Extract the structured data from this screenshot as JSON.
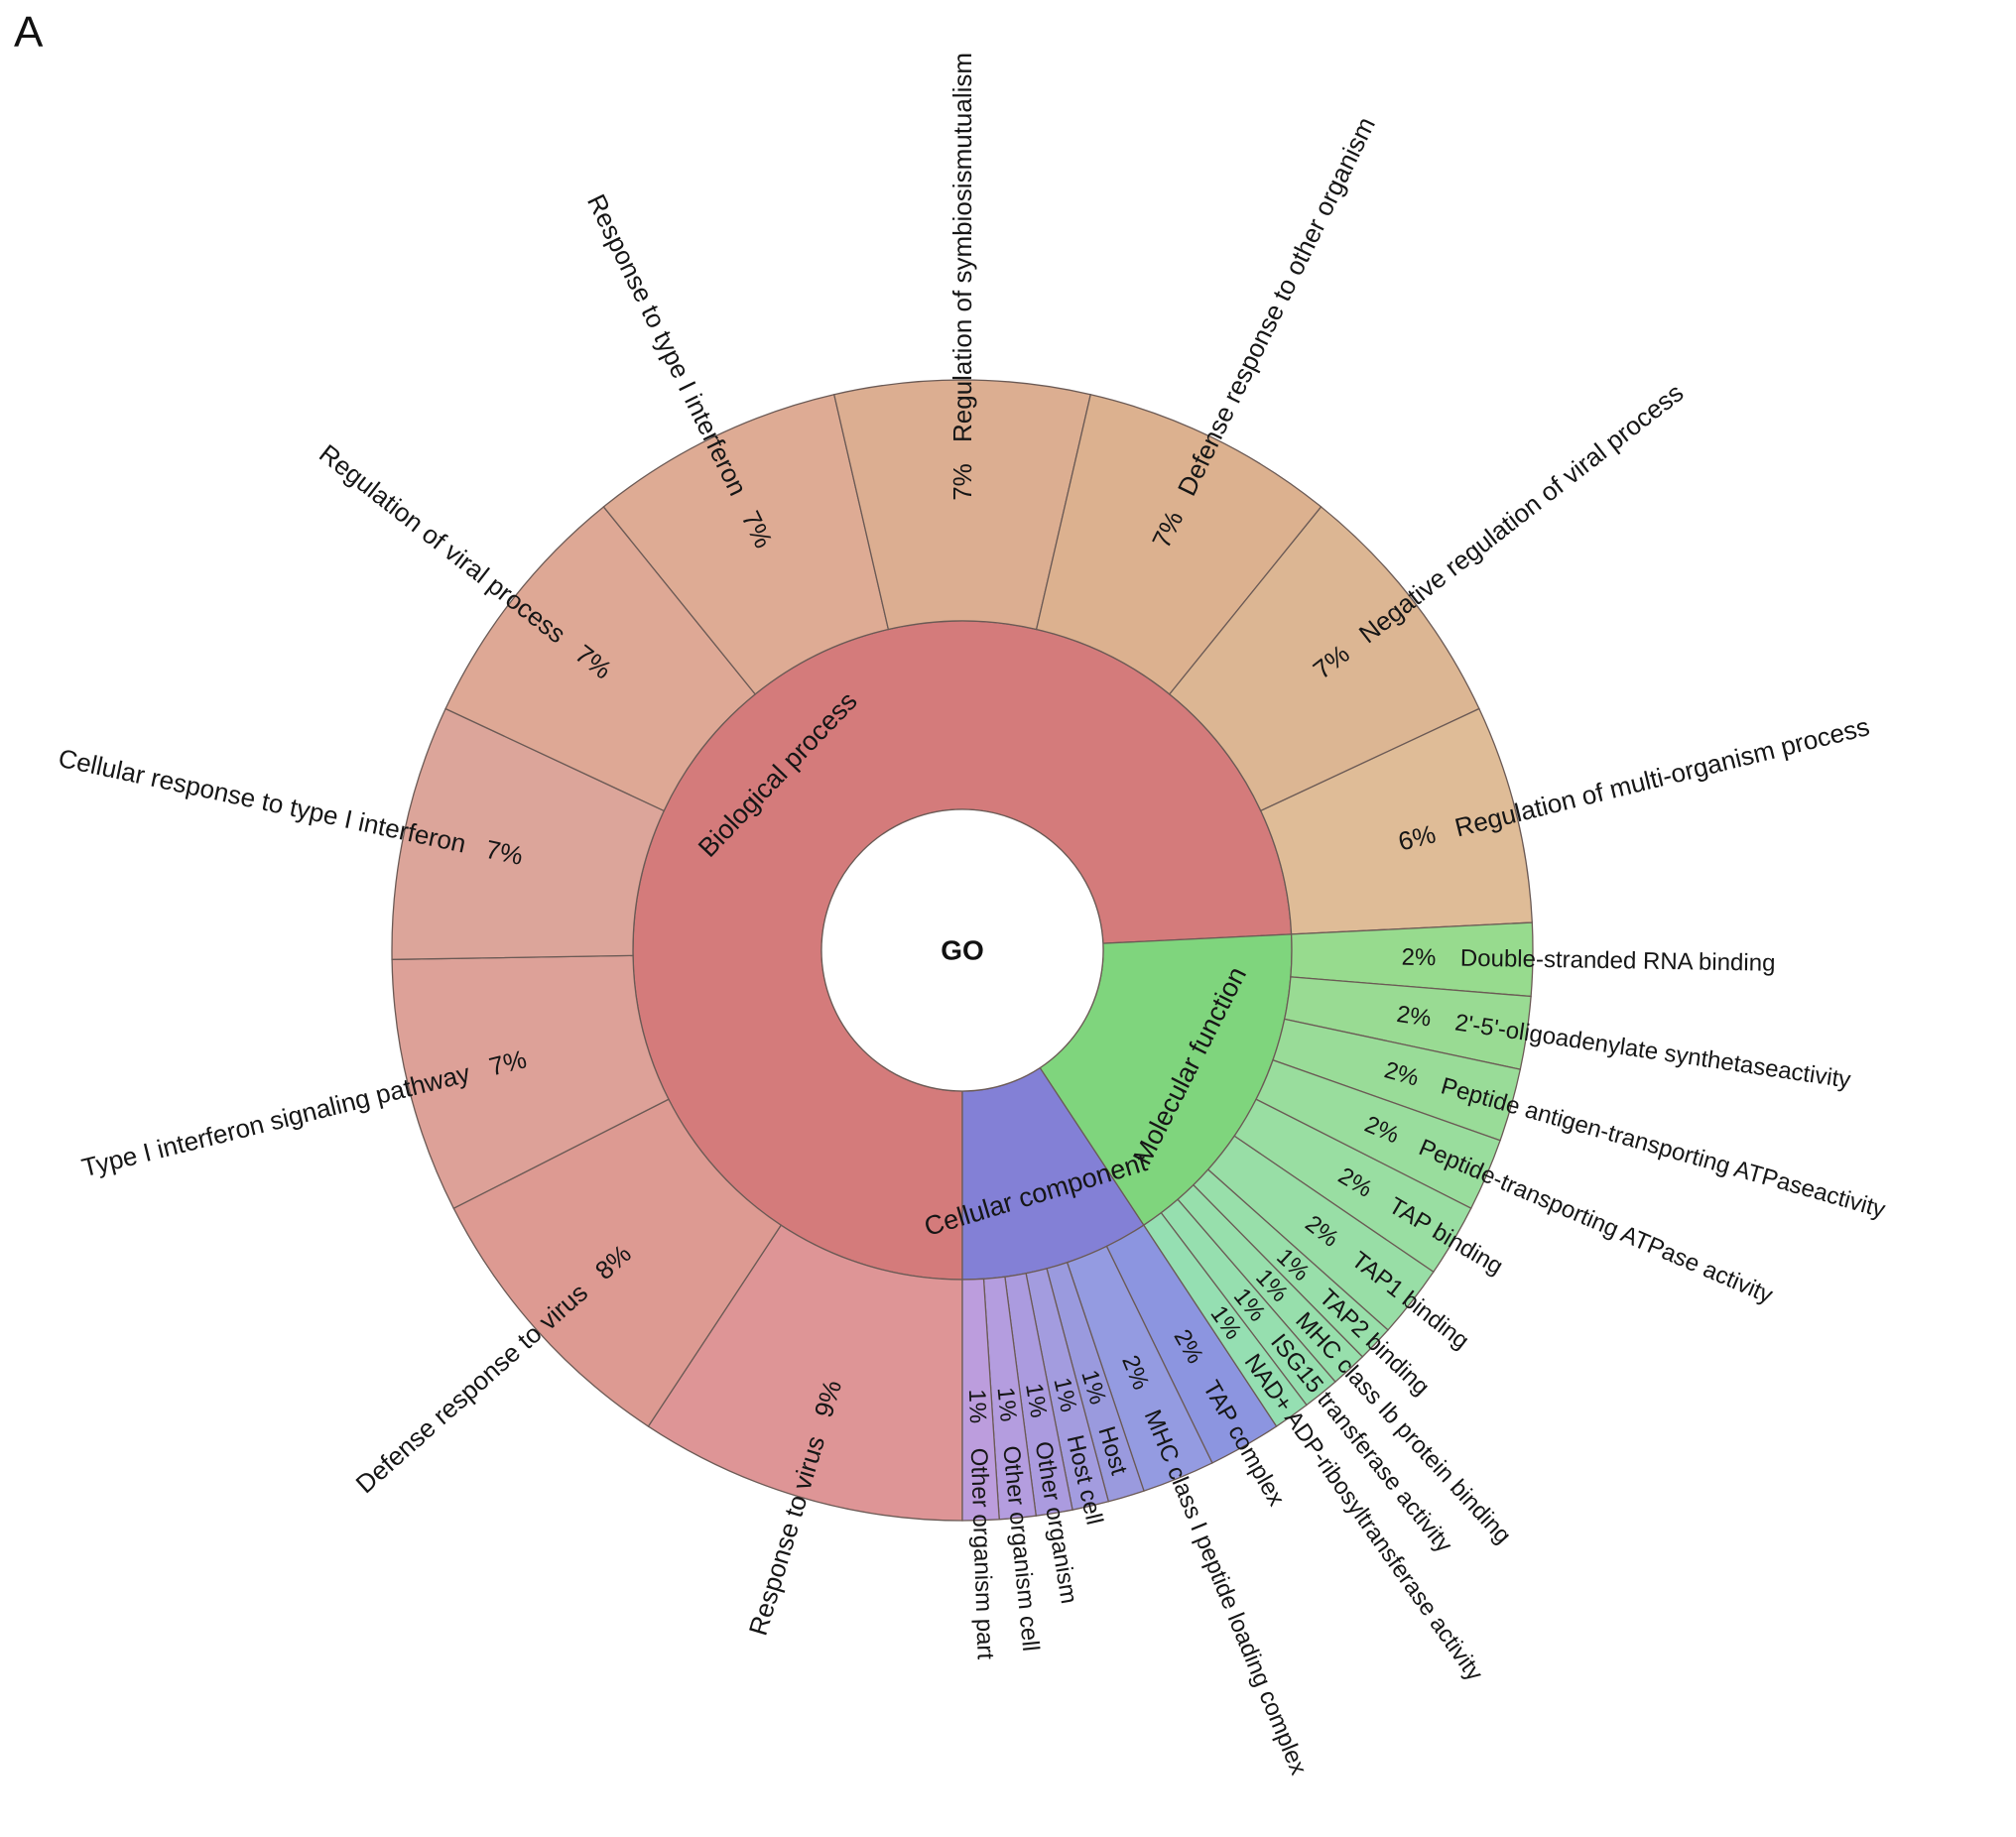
{
  "panel_label": "A",
  "chart_data": {
    "type": "sunburst",
    "root": "GO",
    "start_angle_deg": 180,
    "direction": "counter-clockwise from bottom through left",
    "categories": [
      {
        "name": "Biological process",
        "color": "#d47b7b",
        "children": [
          {
            "name": "Response to virus",
            "pct_label": "9%",
            "value": 9,
            "color": "#de9596"
          },
          {
            "name": "Defense response to virus",
            "pct_label": "8%",
            "value": 8,
            "color": "#dd9a92"
          },
          {
            "name": "Type I interferon signaling pathway",
            "pct_label": "7%",
            "value": 7,
            "color": "#dda198"
          },
          {
            "name": "Cellular response to type I interferon",
            "pct_label": "7%",
            "value": 7,
            "color": "#dca59a"
          },
          {
            "name": "Regulation of viral process",
            "pct_label": "7%",
            "value": 7,
            "color": "#dea895"
          },
          {
            "name": "Response to type I interferon",
            "pct_label": "7%",
            "value": 7,
            "color": "#deab94"
          },
          {
            "name": "Regulation of symbiosismutualism",
            "pct_label": "7%",
            "value": 7,
            "color": "#dcae91"
          },
          {
            "name": "Defense response to other organism",
            "pct_label": "7%",
            "value": 7,
            "color": "#dcb18f"
          },
          {
            "name": "Negative regulation of viral process",
            "pct_label": "7%",
            "value": 7,
            "color": "#dcb693"
          },
          {
            "name": "Regulation of multi-organism process",
            "pct_label": "6%",
            "value": 6,
            "color": "#dfbc97"
          }
        ]
      },
      {
        "name": "Molecular function",
        "color": "#7fd57d",
        "children": [
          {
            "name": "Double-stranded RNA binding",
            "pct_label": "2%",
            "value": 2,
            "color": "#97db8e"
          },
          {
            "name": "2'-5'-oligoadenylate synthetaseactivity",
            "pct_label": "2%",
            "value": 2,
            "color": "#99db93"
          },
          {
            "name": "Peptide antigen-transporting ATPaseactivity",
            "pct_label": "2%",
            "value": 2,
            "color": "#99dc98"
          },
          {
            "name": "Peptide-transporting ATPase activity",
            "pct_label": "2%",
            "value": 2,
            "color": "#99dd9d"
          },
          {
            "name": "TAP binding",
            "pct_label": "2%",
            "value": 2,
            "color": "#99dea2"
          },
          {
            "name": "TAP1 binding",
            "pct_label": "2%",
            "value": 2,
            "color": "#98dea6"
          },
          {
            "name": "TAP2 binding",
            "pct_label": "1%",
            "value": 1,
            "color": "#98dfaa"
          },
          {
            "name": "MHC class Ib protein binding",
            "pct_label": "1%",
            "value": 1,
            "color": "#97dfac"
          },
          {
            "name": "ISG15 transferase activity",
            "pct_label": "1%",
            "value": 1,
            "color": "#96dfaf"
          },
          {
            "name": "NAD+ ADP-ribosyltransferase activity",
            "pct_label": "1%",
            "value": 1,
            "color": "#95dfb2"
          }
        ]
      },
      {
        "name": "Cellular component",
        "color": "#8380d6",
        "children": [
          {
            "name": "TAP complex",
            "pct_label": "2%",
            "value": 2,
            "color": "#8c95e0"
          },
          {
            "name": "MHC class I peptide loading complex",
            "pct_label": "2%",
            "value": 2,
            "color": "#949be1"
          },
          {
            "name": "Host",
            "pct_label": "1%",
            "value": 1,
            "color": "#9a9ade"
          },
          {
            "name": "Host cell",
            "pct_label": "1%",
            "value": 1,
            "color": "#a39cdf"
          },
          {
            "name": "Other organism",
            "pct_label": "1%",
            "value": 1,
            "color": "#ab9bdf"
          },
          {
            "name": "Other organism cell",
            "pct_label": "1%",
            "value": 1,
            "color": "#b49ddf"
          },
          {
            "name": "Other organism part",
            "pct_label": "1%",
            "value": 1,
            "color": "#bc9ddd"
          }
        ]
      }
    ]
  }
}
